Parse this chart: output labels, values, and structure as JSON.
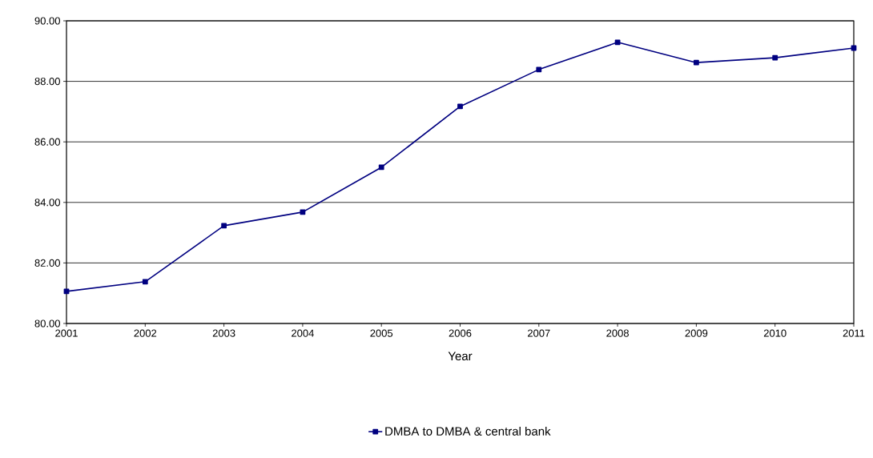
{
  "chart_data": {
    "type": "line",
    "x": [
      2001,
      2002,
      2003,
      2004,
      2005,
      2006,
      2007,
      2008,
      2009,
      2010,
      2011
    ],
    "series": [
      {
        "name": "DMBA to DMBA & central bank",
        "color": "#000080",
        "values": [
          81.06,
          81.38,
          83.23,
          83.68,
          85.16,
          87.17,
          88.39,
          89.29,
          88.62,
          88.78,
          89.1
        ]
      }
    ],
    "xlabel": "Year",
    "xlim": [
      2001,
      2011
    ],
    "xticks": [
      2001,
      2002,
      2003,
      2004,
      2005,
      2006,
      2007,
      2008,
      2009,
      2010,
      2011
    ],
    "ylim": [
      80,
      90
    ],
    "yticks": [
      {
        "value": 80,
        "label": "80.00"
      },
      {
        "value": 82,
        "label": "82.00"
      },
      {
        "value": 84,
        "label": "84.00"
      },
      {
        "value": 86,
        "label": "86.00"
      },
      {
        "value": 88,
        "label": "88.00"
      },
      {
        "value": 90,
        "label": "90.00"
      }
    ],
    "grid": "y",
    "legend": "bottom",
    "marker": "square",
    "line_style": "solid"
  }
}
